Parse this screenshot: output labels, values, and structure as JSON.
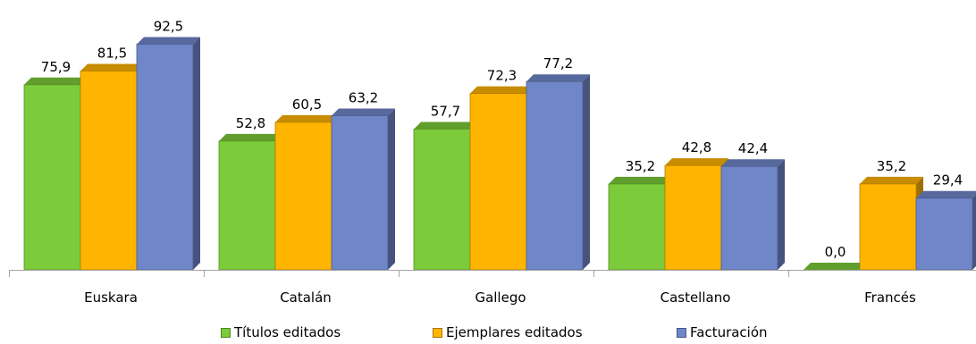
{
  "chart_data": {
    "type": "bar",
    "categories": [
      "Euskara",
      "Catalán",
      "Gallego",
      "Castellano",
      "Francés"
    ],
    "series": [
      {
        "name": "Títulos editados",
        "values": [
          75.9,
          52.8,
          57.7,
          35.2,
          0.0
        ],
        "labels": [
          "75,9",
          "52,8",
          "57,7",
          "35,2",
          "0,0"
        ],
        "color": "#7ccb3a"
      },
      {
        "name": "Ejemplares editados",
        "values": [
          81.5,
          60.5,
          72.3,
          42.8,
          35.2
        ],
        "labels": [
          "81,5",
          "60,5",
          "72,3",
          "42,8",
          "35,2"
        ],
        "color": "#ffb400"
      },
      {
        "name": "Facturación",
        "values": [
          92.5,
          63.2,
          77.2,
          42.4,
          29.4
        ],
        "labels": [
          "92,5",
          "63,2",
          "77,2",
          "42,4",
          "29,4"
        ],
        "color": "#6f86c9"
      }
    ],
    "ylim": [
      0,
      100
    ],
    "grid": false,
    "legend_position": "bottom",
    "three_d": true
  }
}
